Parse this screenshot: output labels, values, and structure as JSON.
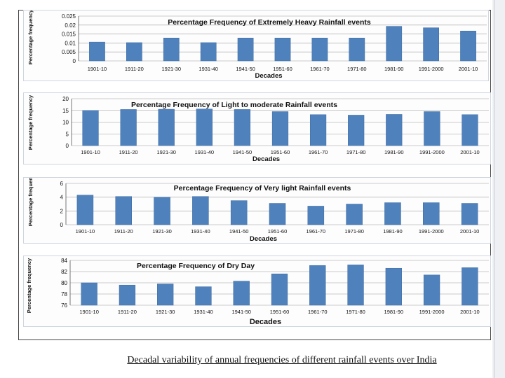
{
  "caption": "Decadal variability of annual frequencies of different rainfall events over India",
  "colors": {
    "bar": "#4f81bd",
    "bar_edge": "#3d6a9e",
    "grid": "#9a9a9a",
    "text": "#111111"
  },
  "chart_data": [
    {
      "type": "bar",
      "title": "Percentage Frequency of Extremely  Heavy Rainfall events",
      "xlabel": "Decades",
      "ylabel": "Percentage frequency",
      "ylim": [
        0,
        0.025
      ],
      "yticks": [
        "0",
        "0.005",
        "0.01",
        "0.015",
        "0.02",
        "0.025"
      ],
      "categories": [
        "1901-10",
        "1911-20",
        "1921-30",
        "1931-40",
        "1941-50",
        "1951-60",
        "1961-70",
        "1971-80",
        "1981-90",
        "1991-2000",
        "2001-10"
      ],
      "values": [
        0.0105,
        0.0102,
        0.0128,
        0.0102,
        0.0128,
        0.0128,
        0.0128,
        0.0128,
        0.0193,
        0.0185,
        0.0167
      ]
    },
    {
      "type": "bar",
      "title": "Percentage Frequency of Light to moderate Rainfall events",
      "xlabel": "Decades",
      "ylabel": "Percentage frequency",
      "ylim": [
        0,
        20
      ],
      "yticks": [
        "0",
        "5",
        "10",
        "15",
        "20"
      ],
      "categories": [
        "1901-10",
        "1911-20",
        "1921-30",
        "1931-40",
        "1941-50",
        "1951-60",
        "1961-70",
        "1971-80",
        "1981-90",
        "1991-2000",
        "2001-10"
      ],
      "values": [
        15.0,
        15.4,
        15.5,
        15.6,
        15.4,
        14.5,
        13.2,
        13.0,
        13.3,
        14.5,
        13.2
      ]
    },
    {
      "type": "bar",
      "title": "Percentage Frequency of Very light Rainfall events",
      "xlabel": "Decades",
      "ylabel": "Percentage frequency",
      "ylim": [
        0,
        6
      ],
      "yticks": [
        "0",
        "2",
        "4",
        "6"
      ],
      "categories": [
        "1901-10",
        "1911-20",
        "1921-30",
        "1931-40",
        "1941-50",
        "1951-60",
        "1961-70",
        "1971-80",
        "1981-90",
        "1991-2000",
        "2001-10"
      ],
      "values": [
        4.3,
        4.1,
        4.0,
        4.1,
        3.5,
        3.1,
        2.7,
        3.0,
        3.2,
        3.2,
        3.1
      ]
    },
    {
      "type": "bar",
      "title": "Percentage Frequency of Dry Day",
      "xlabel": "Decades",
      "ylabel": "Percentage frequency",
      "ylim": [
        76,
        84
      ],
      "yticks": [
        "76",
        "78",
        "80",
        "82",
        "84"
      ],
      "categories": [
        "1901-10",
        "1911-20",
        "1921-30",
        "1931-40",
        "1941-50",
        "1951-60",
        "1961-70",
        "1971-80",
        "1981-90",
        "1991-2000",
        "2001-10"
      ],
      "values": [
        80.0,
        79.6,
        79.8,
        79.3,
        80.3,
        81.6,
        83.1,
        83.2,
        82.6,
        81.4,
        82.7
      ]
    }
  ]
}
